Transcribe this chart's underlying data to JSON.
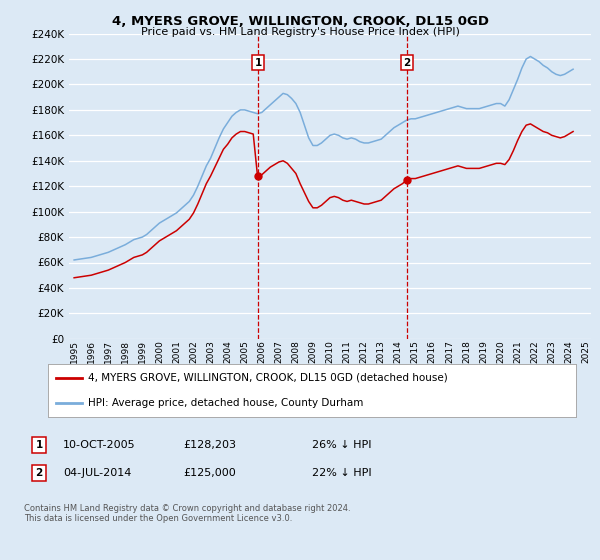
{
  "title": "4, MYERS GROVE, WILLINGTON, CROOK, DL15 0GD",
  "subtitle": "Price paid vs. HM Land Registry's House Price Index (HPI)",
  "legend_line1": "4, MYERS GROVE, WILLINGTON, CROOK, DL15 0GD (detached house)",
  "legend_line2": "HPI: Average price, detached house, County Durham",
  "footer": "Contains HM Land Registry data © Crown copyright and database right 2024.\nThis data is licensed under the Open Government Licence v3.0.",
  "annot1_date": "10-OCT-2005",
  "annot1_price": "£128,203",
  "annot1_hpi": "26% ↓ HPI",
  "annot2_date": "04-JUL-2014",
  "annot2_price": "£125,000",
  "annot2_hpi": "22% ↓ HPI",
  "sale1_year": 2005.78,
  "sale1_price": 128203,
  "sale2_year": 2014.5,
  "sale2_price": 125000,
  "ylim": [
    0,
    240000
  ],
  "yticks": [
    0,
    20000,
    40000,
    60000,
    80000,
    100000,
    120000,
    140000,
    160000,
    180000,
    200000,
    220000,
    240000
  ],
  "background_color": "#dce9f5",
  "plot_bg_color": "#dce9f5",
  "grid_color": "#ffffff",
  "red_line_color": "#cc0000",
  "blue_line_color": "#7aaddb",
  "vline_color": "#cc0000",
  "hpi_data_years": [
    1995.0,
    1995.25,
    1995.5,
    1995.75,
    1996.0,
    1996.25,
    1996.5,
    1996.75,
    1997.0,
    1997.25,
    1997.5,
    1997.75,
    1998.0,
    1998.25,
    1998.5,
    1998.75,
    1999.0,
    1999.25,
    1999.5,
    1999.75,
    2000.0,
    2000.25,
    2000.5,
    2000.75,
    2001.0,
    2001.25,
    2001.5,
    2001.75,
    2002.0,
    2002.25,
    2002.5,
    2002.75,
    2003.0,
    2003.25,
    2003.5,
    2003.75,
    2004.0,
    2004.25,
    2004.5,
    2004.75,
    2005.0,
    2005.25,
    2005.5,
    2005.75,
    2006.0,
    2006.25,
    2006.5,
    2006.75,
    2007.0,
    2007.25,
    2007.5,
    2007.75,
    2008.0,
    2008.25,
    2008.5,
    2008.75,
    2009.0,
    2009.25,
    2009.5,
    2009.75,
    2010.0,
    2010.25,
    2010.5,
    2010.75,
    2011.0,
    2011.25,
    2011.5,
    2011.75,
    2012.0,
    2012.25,
    2012.5,
    2012.75,
    2013.0,
    2013.25,
    2013.5,
    2013.75,
    2014.0,
    2014.25,
    2014.5,
    2014.75,
    2015.0,
    2015.25,
    2015.5,
    2015.75,
    2016.0,
    2016.25,
    2016.5,
    2016.75,
    2017.0,
    2017.25,
    2017.5,
    2017.75,
    2018.0,
    2018.25,
    2018.5,
    2018.75,
    2019.0,
    2019.25,
    2019.5,
    2019.75,
    2020.0,
    2020.25,
    2020.5,
    2020.75,
    2021.0,
    2021.25,
    2021.5,
    2021.75,
    2022.0,
    2022.25,
    2022.5,
    2022.75,
    2023.0,
    2023.25,
    2023.5,
    2023.75,
    2024.0,
    2024.25
  ],
  "hpi_data_vals": [
    62000,
    62500,
    63000,
    63500,
    64000,
    65000,
    66000,
    67000,
    68000,
    69500,
    71000,
    72500,
    74000,
    76000,
    78000,
    79000,
    80000,
    82000,
    85000,
    88000,
    91000,
    93000,
    95000,
    97000,
    99000,
    102000,
    105000,
    108000,
    113000,
    120000,
    128000,
    136000,
    142000,
    150000,
    158000,
    165000,
    170000,
    175000,
    178000,
    180000,
    180000,
    179000,
    178000,
    177000,
    178000,
    181000,
    184000,
    187000,
    190000,
    193000,
    192000,
    189000,
    185000,
    178000,
    168000,
    158000,
    152000,
    152000,
    154000,
    157000,
    160000,
    161000,
    160000,
    158000,
    157000,
    158000,
    157000,
    155000,
    154000,
    154000,
    155000,
    156000,
    157000,
    160000,
    163000,
    166000,
    168000,
    170000,
    172000,
    173000,
    173000,
    174000,
    175000,
    176000,
    177000,
    178000,
    179000,
    180000,
    181000,
    182000,
    183000,
    182000,
    181000,
    181000,
    181000,
    181000,
    182000,
    183000,
    184000,
    185000,
    185000,
    183000,
    188000,
    196000,
    204000,
    213000,
    220000,
    222000,
    220000,
    218000,
    215000,
    213000,
    210000,
    208000,
    207000,
    208000,
    210000,
    212000
  ],
  "prop_data_years": [
    1995.0,
    1995.25,
    1995.5,
    1995.75,
    1996.0,
    1996.25,
    1996.5,
    1996.75,
    1997.0,
    1997.25,
    1997.5,
    1997.75,
    1998.0,
    1998.25,
    1998.5,
    1998.75,
    1999.0,
    1999.25,
    1999.5,
    1999.75,
    2000.0,
    2000.25,
    2000.5,
    2000.75,
    2001.0,
    2001.25,
    2001.5,
    2001.75,
    2002.0,
    2002.25,
    2002.5,
    2002.75,
    2003.0,
    2003.25,
    2003.5,
    2003.75,
    2004.0,
    2004.25,
    2004.5,
    2004.75,
    2005.0,
    2005.25,
    2005.5,
    2005.75,
    2006.0,
    2006.25,
    2006.5,
    2006.75,
    2007.0,
    2007.25,
    2007.5,
    2007.75,
    2008.0,
    2008.25,
    2008.5,
    2008.75,
    2009.0,
    2009.25,
    2009.5,
    2009.75,
    2010.0,
    2010.25,
    2010.5,
    2010.75,
    2011.0,
    2011.25,
    2011.5,
    2011.75,
    2012.0,
    2012.25,
    2012.5,
    2012.75,
    2013.0,
    2013.25,
    2013.5,
    2013.75,
    2014.0,
    2014.25,
    2014.5,
    2014.75,
    2015.0,
    2015.25,
    2015.5,
    2015.75,
    2016.0,
    2016.25,
    2016.5,
    2016.75,
    2017.0,
    2017.25,
    2017.5,
    2017.75,
    2018.0,
    2018.25,
    2018.5,
    2018.75,
    2019.0,
    2019.25,
    2019.5,
    2019.75,
    2020.0,
    2020.25,
    2020.5,
    2020.75,
    2021.0,
    2021.25,
    2021.5,
    2021.75,
    2022.0,
    2022.25,
    2022.5,
    2022.75,
    2023.0,
    2023.25,
    2023.5,
    2023.75,
    2024.0,
    2024.25
  ],
  "prop_data_vals": [
    48000,
    48500,
    49000,
    49500,
    50000,
    51000,
    52000,
    53000,
    54000,
    55500,
    57000,
    58500,
    60000,
    62000,
    64000,
    65000,
    66000,
    68000,
    71000,
    74000,
    77000,
    79000,
    81000,
    83000,
    85000,
    88000,
    91000,
    94000,
    99000,
    106000,
    114000,
    122000,
    128000,
    135000,
    142000,
    149000,
    153000,
    158000,
    161000,
    163000,
    163000,
    162000,
    161000,
    128203,
    129000,
    132000,
    135000,
    137000,
    139000,
    140000,
    138000,
    134000,
    130000,
    122000,
    115000,
    108000,
    103000,
    103000,
    105000,
    108000,
    111000,
    112000,
    111000,
    109000,
    108000,
    109000,
    108000,
    107000,
    106000,
    106000,
    107000,
    108000,
    109000,
    112000,
    115000,
    118000,
    120000,
    122000,
    125000,
    126000,
    126000,
    127000,
    128000,
    129000,
    130000,
    131000,
    132000,
    133000,
    134000,
    135000,
    136000,
    135000,
    134000,
    134000,
    134000,
    134000,
    135000,
    136000,
    137000,
    138000,
    138000,
    137000,
    141000,
    148000,
    156000,
    163000,
    168000,
    169000,
    167000,
    165000,
    163000,
    162000,
    160000,
    159000,
    158000,
    159000,
    161000,
    163000
  ]
}
